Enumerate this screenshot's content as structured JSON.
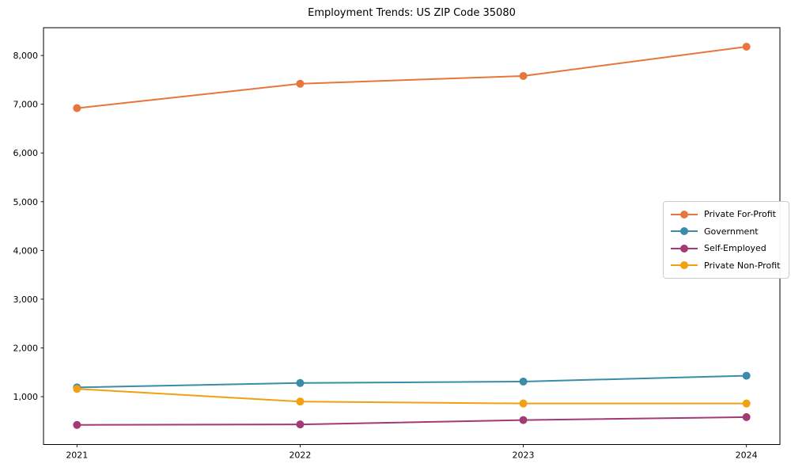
{
  "figure": {
    "background": "#ffffff"
  },
  "chart_data": {
    "type": "line",
    "title": "Employment Trends: US ZIP Code 35080",
    "x": [
      2021,
      2022,
      2023,
      2024
    ],
    "x_tick_labels": [
      "2021",
      "2022",
      "2023",
      "2024"
    ],
    "xlim": [
      2020.85,
      2024.15
    ],
    "ylim": [
      18,
      8570
    ],
    "yticks": [
      1000,
      2000,
      3000,
      4000,
      5000,
      6000,
      7000,
      8000
    ],
    "ytick_labels": [
      "1,000",
      "2,000",
      "3,000",
      "4,000",
      "5,000",
      "6,000",
      "7,000",
      "8,000"
    ],
    "grid": false,
    "legend_position": "center-right",
    "series": [
      {
        "name": "Private For-Profit",
        "color": "#E8763B",
        "values": [
          6920,
          7420,
          7580,
          8180
        ]
      },
      {
        "name": "Government",
        "color": "#3A8CA8",
        "values": [
          1190,
          1280,
          1310,
          1430
        ]
      },
      {
        "name": "Self-Employed",
        "color": "#A33A75",
        "values": [
          420,
          430,
          520,
          580
        ]
      },
      {
        "name": "Private Non-Profit",
        "color": "#F0A011",
        "values": [
          1160,
          900,
          860,
          860
        ]
      }
    ]
  }
}
